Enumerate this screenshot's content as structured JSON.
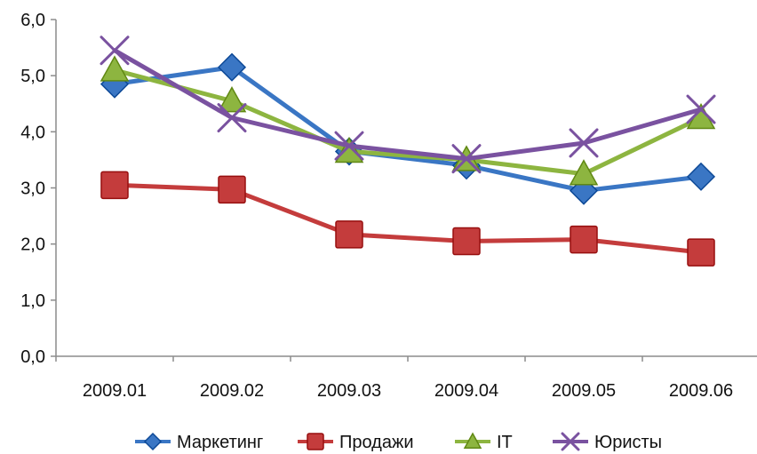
{
  "chart_data": {
    "type": "line",
    "categories": [
      "2009.01",
      "2009.02",
      "2009.03",
      "2009.04",
      "2009.05",
      "2009.06"
    ],
    "y_ticks": [
      "0,0",
      "1,0",
      "2,0",
      "3,0",
      "4,0",
      "5,0",
      "6,0"
    ],
    "ylim": [
      0,
      6
    ],
    "grid": false,
    "legend_position": "bottom",
    "series": [
      {
        "name": "Маркетинг",
        "marker": "diamond",
        "color": "#3A76C4",
        "values": [
          4.85,
          5.15,
          3.65,
          3.4,
          2.95,
          3.2
        ]
      },
      {
        "name": "Продажи",
        "marker": "square",
        "color": "#C43C3C",
        "values": [
          3.05,
          2.97,
          2.17,
          2.05,
          2.08,
          1.85
        ]
      },
      {
        "name": "IT",
        "marker": "triangle",
        "color": "#8DB540",
        "values": [
          5.1,
          4.55,
          3.65,
          3.5,
          3.25,
          4.25
        ]
      },
      {
        "name": "Юристы",
        "marker": "x",
        "color": "#7A52A0",
        "values": [
          5.45,
          4.25,
          3.75,
          3.52,
          3.8,
          4.4
        ]
      }
    ]
  }
}
